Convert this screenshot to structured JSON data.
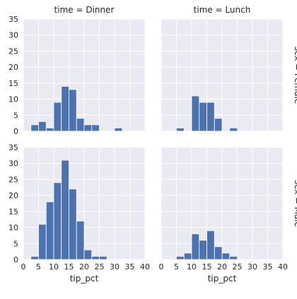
{
  "chart_data": {
    "type": "bar",
    "subtype": "faceted-histogram",
    "xlabel": "tip_pct",
    "ylabel": "",
    "xlim": [
      0,
      40
    ],
    "ylim": [
      0,
      35
    ],
    "xticks": [
      0,
      5,
      10,
      15,
      20,
      25,
      30,
      35,
      40
    ],
    "yticks": [
      0,
      5,
      10,
      15,
      20,
      25,
      30,
      35
    ],
    "bin_width": 2.5,
    "grid": true,
    "bar_color": "#4c72b0",
    "background_color": "#eaeaf2",
    "columns": [
      "time = Dinner",
      "time = Lunch"
    ],
    "rows": [
      "sex = Female",
      "sex = Male"
    ],
    "panels": [
      {
        "col_title": "time = Dinner",
        "row_title": "sex = Female",
        "bars": [
          {
            "x0": 2.5,
            "x1": 5,
            "count": 2
          },
          {
            "x0": 5,
            "x1": 7.5,
            "count": 3
          },
          {
            "x0": 7.5,
            "x1": 10,
            "count": 1
          },
          {
            "x0": 10,
            "x1": 12.5,
            "count": 9
          },
          {
            "x0": 12.5,
            "x1": 15,
            "count": 14
          },
          {
            "x0": 15,
            "x1": 17.5,
            "count": 13
          },
          {
            "x0": 17.5,
            "x1": 20,
            "count": 4
          },
          {
            "x0": 20,
            "x1": 22.5,
            "count": 2
          },
          {
            "x0": 22.5,
            "x1": 25,
            "count": 2
          },
          {
            "x0": 30,
            "x1": 32.5,
            "count": 1
          }
        ]
      },
      {
        "col_title": "time = Lunch",
        "row_title": "sex = Female",
        "bars": [
          {
            "x0": 5,
            "x1": 7.5,
            "count": 1
          },
          {
            "x0": 10,
            "x1": 12.5,
            "count": 11
          },
          {
            "x0": 12.5,
            "x1": 15,
            "count": 9
          },
          {
            "x0": 15,
            "x1": 17.5,
            "count": 9
          },
          {
            "x0": 17.5,
            "x1": 20,
            "count": 4
          },
          {
            "x0": 22.5,
            "x1": 25,
            "count": 1
          }
        ]
      },
      {
        "col_title": "time = Dinner",
        "row_title": "sex = Male",
        "bars": [
          {
            "x0": 2.5,
            "x1": 5,
            "count": 1
          },
          {
            "x0": 5,
            "x1": 7.5,
            "count": 11
          },
          {
            "x0": 7.5,
            "x1": 10,
            "count": 18
          },
          {
            "x0": 10,
            "x1": 12.5,
            "count": 24
          },
          {
            "x0": 12.5,
            "x1": 15,
            "count": 31
          },
          {
            "x0": 15,
            "x1": 17.5,
            "count": 22
          },
          {
            "x0": 17.5,
            "x1": 20,
            "count": 12
          },
          {
            "x0": 20,
            "x1": 22.5,
            "count": 3
          },
          {
            "x0": 22.5,
            "x1": 25,
            "count": 1
          },
          {
            "x0": 25,
            "x1": 27.5,
            "count": 1
          }
        ]
      },
      {
        "col_title": "time = Lunch",
        "row_title": "sex = Male",
        "bars": [
          {
            "x0": 5,
            "x1": 7.5,
            "count": 1
          },
          {
            "x0": 7.5,
            "x1": 10,
            "count": 2
          },
          {
            "x0": 10,
            "x1": 12.5,
            "count": 8
          },
          {
            "x0": 12.5,
            "x1": 15,
            "count": 6
          },
          {
            "x0": 15,
            "x1": 17.5,
            "count": 9
          },
          {
            "x0": 17.5,
            "x1": 20,
            "count": 4
          },
          {
            "x0": 20,
            "x1": 22.5,
            "count": 2
          },
          {
            "x0": 22.5,
            "x1": 25,
            "count": 1
          }
        ]
      }
    ]
  }
}
